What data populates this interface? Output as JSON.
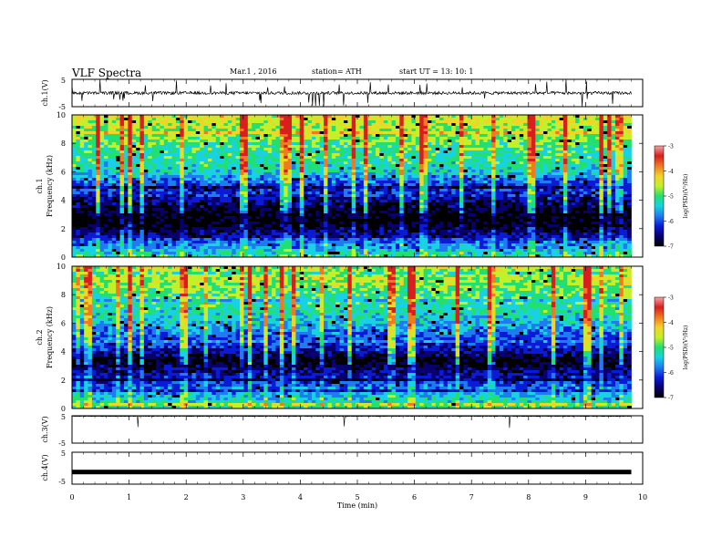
{
  "header": {
    "title": "VLF  Spectra",
    "date": "Mar.1  , 2016",
    "station": "station= ATH",
    "start": "start  UT  =    13: 10: 1"
  },
  "colors": {
    "spectrum": [
      "#000000",
      "#08006e",
      "#0a1bd6",
      "#1e7bf0",
      "#18d2e4",
      "#22e070",
      "#c4f02a",
      "#f2d428",
      "#f07a22",
      "#d81e1e",
      "#f4a4a4",
      "#ffffff"
    ]
  },
  "chart_data": [
    {
      "type": "line",
      "name": "ch1-waveform",
      "ylabel": "ch.1(V)",
      "ylim": [
        -5,
        5
      ],
      "yticks": [
        "5",
        "-5"
      ],
      "baseline": 0,
      "noise": "moderate with frequent spikes"
    },
    {
      "type": "heatmap",
      "name": "ch1-spectrogram",
      "ylabel": "ch.1\nFrequency  (kHz)",
      "ylabel_lines": [
        "ch.1",
        "Frequency  (kHz)"
      ],
      "ylim": [
        0,
        10
      ],
      "yticks": [
        "0",
        "2",
        "4",
        "6",
        "8",
        "10"
      ],
      "xlim": [
        0,
        9.8
      ],
      "z_label": "log(PSD)(V²/Hz)",
      "zlim": [
        -7,
        -3
      ],
      "zticks": [
        "-7",
        "-6",
        "-5",
        "-4",
        "-3"
      ],
      "band_profile": [
        {
          "f": 0,
          "z": -4.8
        },
        {
          "f": 0.5,
          "z": -5.3
        },
        {
          "f": 1.0,
          "z": -5.6
        },
        {
          "f": 1.5,
          "z": -6.2
        },
        {
          "f": 2.0,
          "z": -6.6
        },
        {
          "f": 2.5,
          "z": -6.9
        },
        {
          "f": 3.0,
          "z": -6.8
        },
        {
          "f": 3.5,
          "z": -6.6
        },
        {
          "f": 4.0,
          "z": -6.3
        },
        {
          "f": 4.5,
          "z": -6.0
        },
        {
          "f": 5.0,
          "z": -5.9
        },
        {
          "f": 5.5,
          "z": -5.6
        },
        {
          "f": 6.0,
          "z": -5.1
        },
        {
          "f": 6.5,
          "z": -5.0
        },
        {
          "f": 7.0,
          "z": -4.9
        },
        {
          "f": 7.5,
          "z": -4.9
        },
        {
          "f": 8.0,
          "z": -4.7
        },
        {
          "f": 8.5,
          "z": -4.6
        },
        {
          "f": 9.0,
          "z": -4.5
        },
        {
          "f": 9.5,
          "z": -4.3
        },
        {
          "f": 10.0,
          "z": -4.2
        }
      ]
    },
    {
      "type": "heatmap",
      "name": "ch2-spectrogram",
      "ylabel": "ch.2\nFrequency  (kHz)",
      "ylabel_lines": [
        "ch.2",
        "Frequency  (kHz)"
      ],
      "ylim": [
        0,
        10
      ],
      "yticks": [
        "0",
        "2",
        "4",
        "6",
        "8",
        "10"
      ],
      "xlim": [
        0,
        9.8
      ],
      "z_label": "log(PSD)(V²/Hz)",
      "zlim": [
        -7,
        -3
      ],
      "zticks": [
        "-7",
        "-6",
        "-5",
        "-4",
        "-3"
      ],
      "band_profile": [
        {
          "f": 0,
          "z": -4.9
        },
        {
          "f": 0.5,
          "z": -5.1
        },
        {
          "f": 1.0,
          "z": -5.4
        },
        {
          "f": 1.5,
          "z": -5.7
        },
        {
          "f": 2.0,
          "z": -6.0
        },
        {
          "f": 2.5,
          "z": -6.3
        },
        {
          "f": 3.0,
          "z": -6.6
        },
        {
          "f": 3.5,
          "z": -6.8
        },
        {
          "f": 4.0,
          "z": -6.2
        },
        {
          "f": 4.5,
          "z": -5.9
        },
        {
          "f": 5.0,
          "z": -5.8
        },
        {
          "f": 5.5,
          "z": -5.5
        },
        {
          "f": 6.0,
          "z": -5.3
        },
        {
          "f": 6.5,
          "z": -5.1
        },
        {
          "f": 7.0,
          "z": -5.0
        },
        {
          "f": 7.5,
          "z": -4.9
        },
        {
          "f": 8.0,
          "z": -4.8
        },
        {
          "f": 8.5,
          "z": -4.6
        },
        {
          "f": 9.0,
          "z": -4.5
        },
        {
          "f": 9.5,
          "z": -4.4
        },
        {
          "f": 10.0,
          "z": -4.3
        }
      ]
    },
    {
      "type": "line",
      "name": "ch3-waveform",
      "ylabel": "ch.3(V)",
      "ylim": [
        -5,
        5
      ],
      "yticks": [
        "5",
        "-5"
      ],
      "baseline": 4.8,
      "noise": "flat"
    },
    {
      "type": "line",
      "name": "ch4-waveform",
      "ylabel": "ch.4(V)",
      "ylim": [
        -5,
        5
      ],
      "yticks": [
        "5",
        "-5"
      ],
      "baseline": -1.2,
      "noise": "thick constant band"
    }
  ],
  "time_axis": {
    "xlabel": "Time  (min)",
    "xlim": [
      0,
      10
    ],
    "ticks": [
      "0",
      "1",
      "2",
      "3",
      "4",
      "5",
      "6",
      "7",
      "8",
      "9",
      "10"
    ]
  }
}
